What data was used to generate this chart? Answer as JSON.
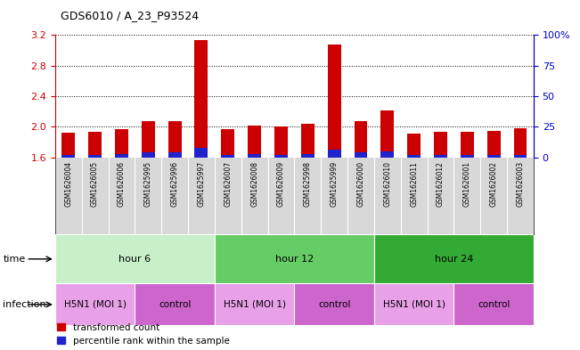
{
  "title": "GDS6010 / A_23_P93524",
  "samples": [
    "GSM1626004",
    "GSM1626005",
    "GSM1626006",
    "GSM1625995",
    "GSM1625996",
    "GSM1625997",
    "GSM1626007",
    "GSM1626008",
    "GSM1626009",
    "GSM1625998",
    "GSM1625999",
    "GSM1626000",
    "GSM1626010",
    "GSM1626011",
    "GSM1626012",
    "GSM1626001",
    "GSM1626002",
    "GSM1626003"
  ],
  "red_values": [
    1.92,
    1.93,
    1.97,
    2.07,
    2.07,
    3.13,
    1.97,
    2.02,
    2.0,
    2.04,
    3.07,
    2.08,
    2.22,
    1.91,
    1.93,
    1.93,
    1.95,
    1.98
  ],
  "blue_values": [
    1.63,
    1.63,
    1.65,
    1.67,
    1.67,
    1.73,
    1.63,
    1.65,
    1.63,
    1.65,
    1.7,
    1.67,
    1.68,
    1.63,
    1.63,
    1.63,
    1.63,
    1.63
  ],
  "y_min": 1.6,
  "y_max": 3.2,
  "y_ticks_left": [
    1.6,
    2.0,
    2.4,
    2.8,
    3.2
  ],
  "y_ticks_right": [
    0,
    25,
    50,
    75,
    100
  ],
  "y_right_labels": [
    "0",
    "25",
    "50",
    "75",
    "100%"
  ],
  "bar_color_red": "#cc0000",
  "bar_color_blue": "#2222cc",
  "bar_width": 0.5,
  "time_groups": [
    {
      "label": "hour 6",
      "start": 0,
      "end": 6,
      "color_light": "#c8f0c8",
      "color_dark": "#55cc55"
    },
    {
      "label": "hour 12",
      "start": 6,
      "end": 12,
      "color_light": "#88dd88",
      "color_dark": "#44bb44"
    },
    {
      "label": "hour 24",
      "start": 12,
      "end": 18,
      "color_light": "#44bb44",
      "color_dark": "#229922"
    }
  ],
  "infection_groups": [
    {
      "label": "H5N1 (MOI 1)",
      "start": 0,
      "end": 3,
      "color": "#e8a0e8"
    },
    {
      "label": "control",
      "start": 3,
      "end": 6,
      "color": "#cc66cc"
    },
    {
      "label": "H5N1 (MOI 1)",
      "start": 6,
      "end": 9,
      "color": "#e8a0e8"
    },
    {
      "label": "control",
      "start": 9,
      "end": 12,
      "color": "#cc66cc"
    },
    {
      "label": "H5N1 (MOI 1)",
      "start": 12,
      "end": 15,
      "color": "#e8a0e8"
    },
    {
      "label": "control",
      "start": 15,
      "end": 18,
      "color": "#cc66cc"
    }
  ],
  "xlabel_color_left": "#cc0000",
  "xlabel_color_right": "#0000cc",
  "time_label": "time",
  "infection_label": "infection",
  "sample_bg": "#d8d8d8",
  "bg_color": "#ffffff"
}
